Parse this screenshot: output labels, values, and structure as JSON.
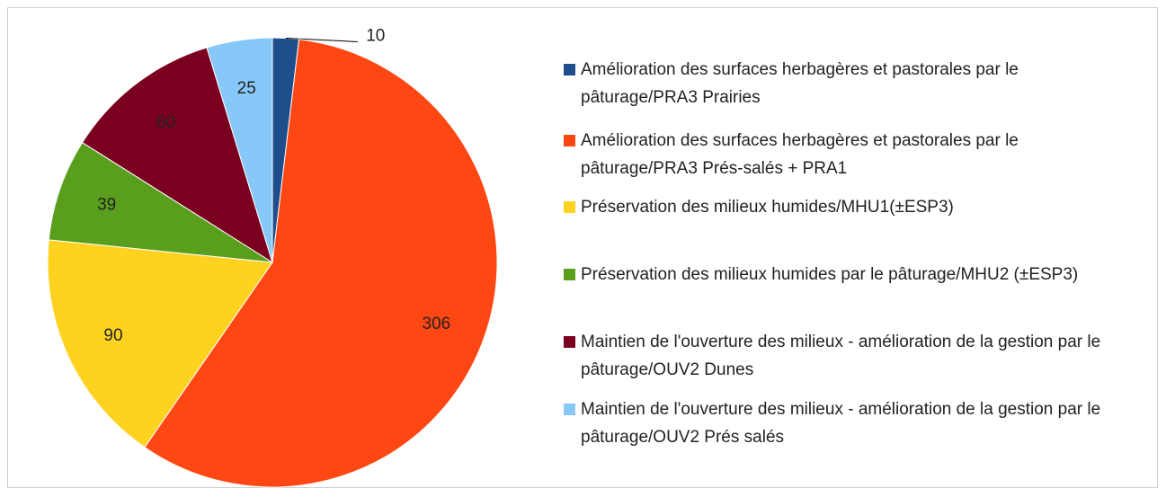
{
  "chart_data": {
    "type": "pie",
    "categories": [
      "Amélioration des surfaces herbagères et pastorales par le pâturage/PRA3 Prairies",
      "Amélioration des surfaces herbagères et pastorales par le pâturage/PRA3 Prés-salés + PRA1",
      "Préservation des milieux humides/MHU1(±ESP3)",
      "Préservation des milieux humides par le pâturage/MHU2 (±ESP3)",
      "Maintien de l'ouverture des milieux - amélioration de la gestion par le pâturage/OUV2 Dunes",
      "Maintien de l'ouverture des milieux - amélioration de la gestion par le pâturage/OUV2 Prés salés"
    ],
    "values": [
      10,
      306,
      90,
      39,
      60,
      25
    ],
    "colors": [
      "#1f4e8c",
      "#ff4713",
      "#ffd21f",
      "#5a9e1e",
      "#7b0020",
      "#87c8f8"
    ]
  }
}
